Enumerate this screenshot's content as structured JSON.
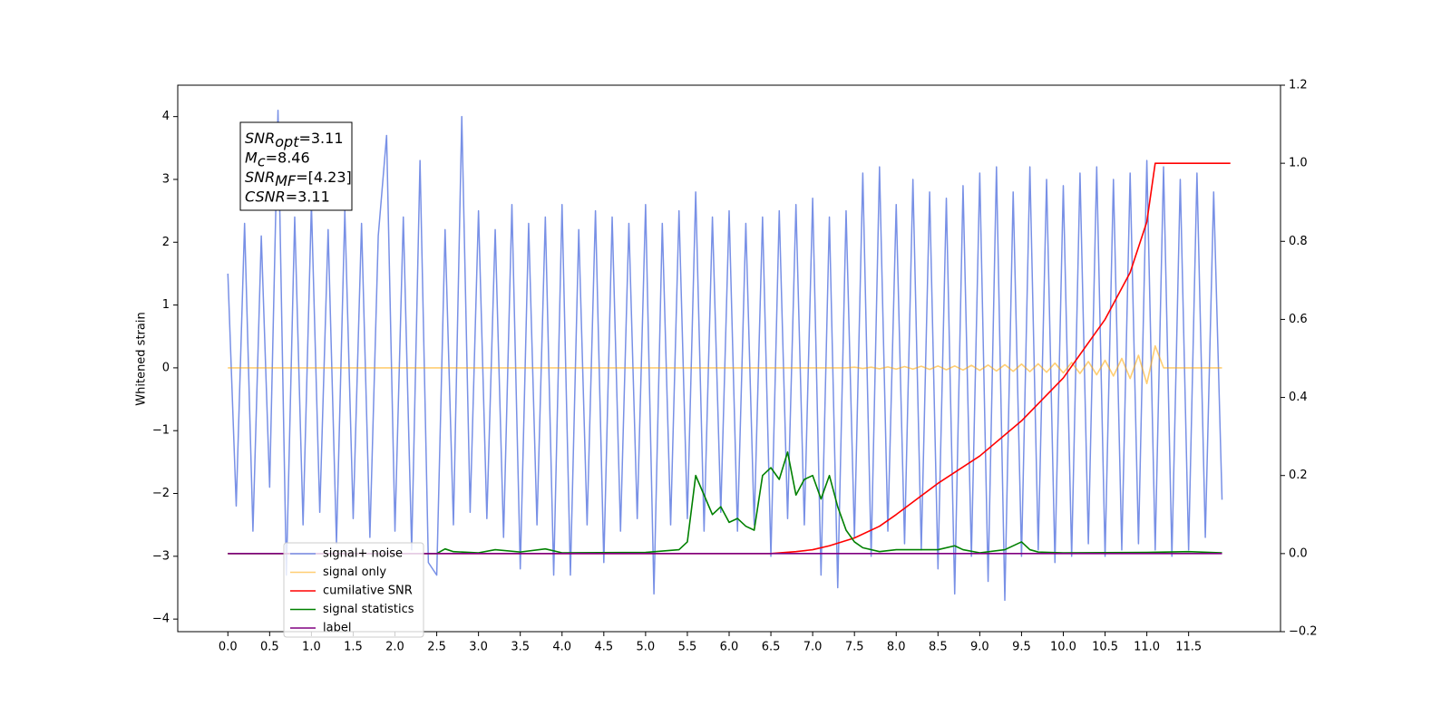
{
  "chart_data": {
    "type": "line",
    "ylabel": "Whitened strain",
    "x": [
      0,
      0.1,
      0.2,
      0.3,
      0.4,
      0.5,
      0.6,
      0.7,
      0.8,
      0.9,
      1.0,
      1.1,
      1.2,
      1.3,
      1.4,
      1.5,
      1.6,
      1.7,
      1.8,
      1.9,
      2.0,
      2.1,
      2.2,
      2.3,
      2.4,
      2.5,
      2.6,
      2.7,
      2.8,
      2.9,
      3.0,
      3.1,
      3.2,
      3.3,
      3.4,
      3.5,
      3.6,
      3.7,
      3.8,
      3.9,
      4.0,
      4.1,
      4.2,
      4.3,
      4.4,
      4.5,
      4.6,
      4.7,
      4.8,
      4.9,
      5.0,
      5.1,
      5.2,
      5.3,
      5.4,
      5.5,
      5.6,
      5.7,
      5.8,
      5.9,
      6.0,
      6.1,
      6.2,
      6.3,
      6.4,
      6.5,
      6.6,
      6.7,
      6.8,
      6.9,
      7.0,
      7.1,
      7.2,
      7.3,
      7.4,
      7.5,
      7.6,
      7.7,
      7.8,
      7.9,
      8.0,
      8.1,
      8.2,
      8.3,
      8.4,
      8.5,
      8.6,
      8.7,
      8.8,
      8.9,
      9.0,
      9.1,
      9.2,
      9.3,
      9.4,
      9.5,
      9.6,
      9.7,
      9.8,
      9.9,
      10.0,
      10.1,
      10.2,
      10.3,
      10.4,
      10.5,
      10.6,
      10.7,
      10.8,
      10.9,
      11.0,
      11.1,
      11.2,
      11.3,
      11.4,
      11.5,
      11.6,
      11.7,
      11.8,
      11.9
    ],
    "series": [
      {
        "name": "signal+ noise",
        "color": "#7890e6",
        "values": [
          1.5,
          -2.2,
          2.3,
          -2.6,
          2.1,
          -1.9,
          4.1,
          -3.3,
          2.4,
          -2.5,
          2.6,
          -2.3,
          2.2,
          -2.8,
          2.5,
          -2.4,
          2.3,
          -2.7,
          2.1,
          3.7,
          -2.6,
          2.4,
          -2.9,
          3.3,
          -3.1,
          -3.3,
          2.2,
          -2.5,
          4.0,
          -2.3,
          2.5,
          -2.4,
          2.2,
          -2.7,
          2.6,
          -3.2,
          2.3,
          -2.5,
          2.4,
          -3.3,
          2.6,
          -3.3,
          2.2,
          -2.5,
          2.5,
          -3.1,
          2.4,
          -2.6,
          2.3,
          -2.4,
          2.6,
          -3.6,
          2.3,
          -2.5,
          2.5,
          -2.4,
          2.8,
          -2.6,
          2.4,
          -2.3,
          2.5,
          -2.6,
          2.3,
          -2.5,
          2.4,
          -3.0,
          2.5,
          -2.4,
          2.6,
          -2.5,
          2.7,
          -3.3,
          2.4,
          -3.5,
          2.5,
          -2.7,
          3.1,
          -3.0,
          3.2,
          -2.6,
          2.6,
          -2.8,
          3.0,
          -2.9,
          2.8,
          -3.2,
          2.7,
          -3.6,
          2.9,
          -3.0,
          3.1,
          -3.4,
          3.2,
          -3.7,
          2.8,
          -3.0,
          3.2,
          -2.9,
          3.0,
          -3.1,
          2.9,
          -3.0,
          3.1,
          -2.8,
          3.2,
          -3.0,
          3.0,
          -2.9,
          3.1,
          -2.8,
          3.3,
          -2.9,
          3.2,
          -3.0,
          3.0,
          -2.9,
          3.1,
          -2.7,
          2.8,
          -2.1
        ]
      },
      {
        "name": "signal only",
        "color": "#ffa500",
        "x": [
          0,
          7.4,
          7.5,
          7.6,
          7.7,
          7.8,
          7.9,
          8.0,
          8.1,
          8.2,
          8.3,
          8.4,
          8.5,
          8.6,
          8.7,
          8.8,
          8.9,
          9.0,
          9.1,
          9.2,
          9.3,
          9.4,
          9.5,
          9.6,
          9.7,
          9.8,
          9.9,
          10.0,
          10.1,
          10.2,
          10.3,
          10.4,
          10.5,
          10.6,
          10.7,
          10.8,
          10.9,
          11.0,
          11.1,
          11.2,
          11.9
        ],
        "values": [
          0,
          0,
          0.01,
          -0.01,
          0.01,
          -0.015,
          0.015,
          -0.02,
          0.02,
          -0.02,
          0.025,
          -0.025,
          0.03,
          -0.03,
          0.03,
          -0.035,
          0.04,
          -0.04,
          0.045,
          -0.05,
          0.05,
          -0.055,
          0.06,
          -0.06,
          0.065,
          -0.07,
          0.075,
          -0.08,
          0.085,
          -0.09,
          0.1,
          -0.11,
          0.12,
          -0.13,
          0.15,
          -0.17,
          0.2,
          -0.25,
          0.35,
          0,
          0
        ]
      },
      {
        "name": "cumilative SNR",
        "color": "#ff0000",
        "axis": "y2",
        "x": [
          0,
          6.5,
          6.8,
          7.0,
          7.2,
          7.5,
          7.8,
          8.0,
          8.5,
          9.0,
          9.5,
          10.0,
          10.5,
          10.8,
          11.0,
          11.08,
          11.1,
          12.0
        ],
        "values": [
          0,
          0,
          0.005,
          0.01,
          0.02,
          0.04,
          0.07,
          0.1,
          0.18,
          0.25,
          0.34,
          0.45,
          0.6,
          0.72,
          0.85,
          0.97,
          1.0,
          1.0
        ]
      },
      {
        "name": "signal statistics",
        "color": "#008000",
        "axis": "y2",
        "x": [
          0,
          2.5,
          2.6,
          2.7,
          3.0,
          3.2,
          3.5,
          3.8,
          4.0,
          5.0,
          5.4,
          5.5,
          5.6,
          5.7,
          5.8,
          5.9,
          6.0,
          6.1,
          6.2,
          6.3,
          6.4,
          6.5,
          6.6,
          6.7,
          6.8,
          6.9,
          7.0,
          7.1,
          7.2,
          7.3,
          7.4,
          7.5,
          7.6,
          7.8,
          8.0,
          8.5,
          8.7,
          8.8,
          9.0,
          9.3,
          9.5,
          9.6,
          9.7,
          10.0,
          11.0,
          11.5,
          11.9
        ],
        "values": [
          0,
          0,
          0.012,
          0.005,
          0.002,
          0.01,
          0.004,
          0.012,
          0.002,
          0.003,
          0.01,
          0.03,
          0.2,
          0.15,
          0.1,
          0.12,
          0.08,
          0.09,
          0.07,
          0.06,
          0.2,
          0.22,
          0.19,
          0.26,
          0.15,
          0.19,
          0.2,
          0.14,
          0.2,
          0.12,
          0.06,
          0.03,
          0.015,
          0.005,
          0.01,
          0.01,
          0.02,
          0.01,
          0.002,
          0.01,
          0.03,
          0.01,
          0.004,
          0.002,
          0.003,
          0.005,
          0.002
        ]
      },
      {
        "name": "label",
        "color": "#800080",
        "axis": "y2",
        "x": [
          0,
          11.9
        ],
        "values": [
          0,
          0
        ]
      }
    ],
    "xlim": [
      -0.6,
      12.6
    ],
    "ylim": [
      -4.2,
      4.5
    ],
    "y2lim": [
      -0.2,
      1.2
    ],
    "xticks": [
      {
        "value": 0,
        "label": "0.0"
      },
      {
        "value": 0.5,
        "label": "0.5"
      },
      {
        "value": 1,
        "label": "1.0"
      },
      {
        "value": 1.5,
        "label": "1.5"
      },
      {
        "value": 2,
        "label": "2.0"
      },
      {
        "value": 2.5,
        "label": "2.5"
      },
      {
        "value": 3,
        "label": "3.0"
      },
      {
        "value": 3.5,
        "label": "3.5"
      },
      {
        "value": 4,
        "label": "4.0"
      },
      {
        "value": 4.5,
        "label": "4.5"
      },
      {
        "value": 5,
        "label": "5.0"
      },
      {
        "value": 5.5,
        "label": "5.5"
      },
      {
        "value": 6,
        "label": "6.0"
      },
      {
        "value": 6.5,
        "label": "6.5"
      },
      {
        "value": 7,
        "label": "7.0"
      },
      {
        "value": 7.5,
        "label": "7.5"
      },
      {
        "value": 8,
        "label": "8.0"
      },
      {
        "value": 8.5,
        "label": "8.5"
      },
      {
        "value": 9,
        "label": "9.0"
      },
      {
        "value": 9.5,
        "label": "9.5"
      },
      {
        "value": 10,
        "label": "10.0"
      },
      {
        "value": 10.5,
        "label": "10.5"
      },
      {
        "value": 11,
        "label": "11.0"
      },
      {
        "value": 11.5,
        "label": "11.5"
      }
    ],
    "yticks": [
      {
        "value": -4,
        "label": "−4"
      },
      {
        "value": -3,
        "label": "−3"
      },
      {
        "value": -2,
        "label": "−2"
      },
      {
        "value": -1,
        "label": "−1"
      },
      0,
      1,
      2,
      3,
      4
    ],
    "y2ticks": [
      {
        "value": -0.2,
        "label": "−0.2"
      },
      {
        "value": 0,
        "label": "0.0"
      },
      {
        "value": 0.2,
        "label": "0.2"
      },
      {
        "value": 0.4,
        "label": "0.4"
      },
      {
        "value": 0.6,
        "label": "0.6"
      },
      {
        "value": 0.8,
        "label": "0.8"
      },
      {
        "value": 1.0,
        "label": "1.0"
      },
      {
        "value": 1.2,
        "label": "1.2"
      }
    ],
    "legend": "lower left",
    "annotation": [
      {
        "base": "SNR",
        "sub": "opt",
        "rest": "=3.11"
      },
      {
        "base": "M",
        "sub": "c",
        "rest": "=8.46"
      },
      {
        "base": "SNR",
        "sub": "MF",
        "rest": "=[4.23]"
      },
      {
        "base": "CSNR",
        "rest": "=3.11"
      }
    ]
  }
}
